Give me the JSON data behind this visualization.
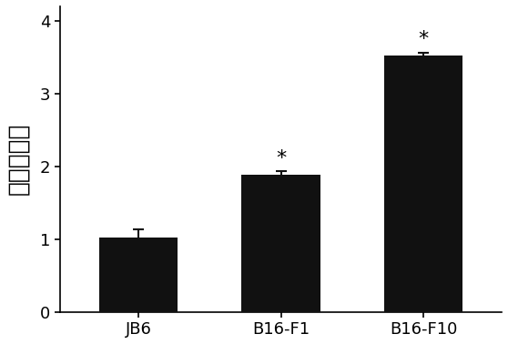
{
  "categories": [
    "JB6",
    "B16-F1",
    "B16-F10"
  ],
  "values": [
    1.02,
    1.88,
    3.52
  ],
  "errors": [
    0.12,
    0.05,
    0.04
  ],
  "bar_color": "#111111",
  "bar_width": 0.55,
  "ylabel": "相对表达量",
  "ylim": [
    0,
    4.2
  ],
  "yticks": [
    0,
    1,
    2,
    3,
    4
  ],
  "significance": [
    false,
    true,
    true
  ],
  "sig_marker": "*",
  "sig_fontsize": 16,
  "ylabel_fontsize": 19,
  "tick_fontsize": 13,
  "xtick_fontsize": 13,
  "background_color": "#ffffff",
  "error_capsize": 4,
  "error_linewidth": 1.5,
  "error_color": "#111111"
}
